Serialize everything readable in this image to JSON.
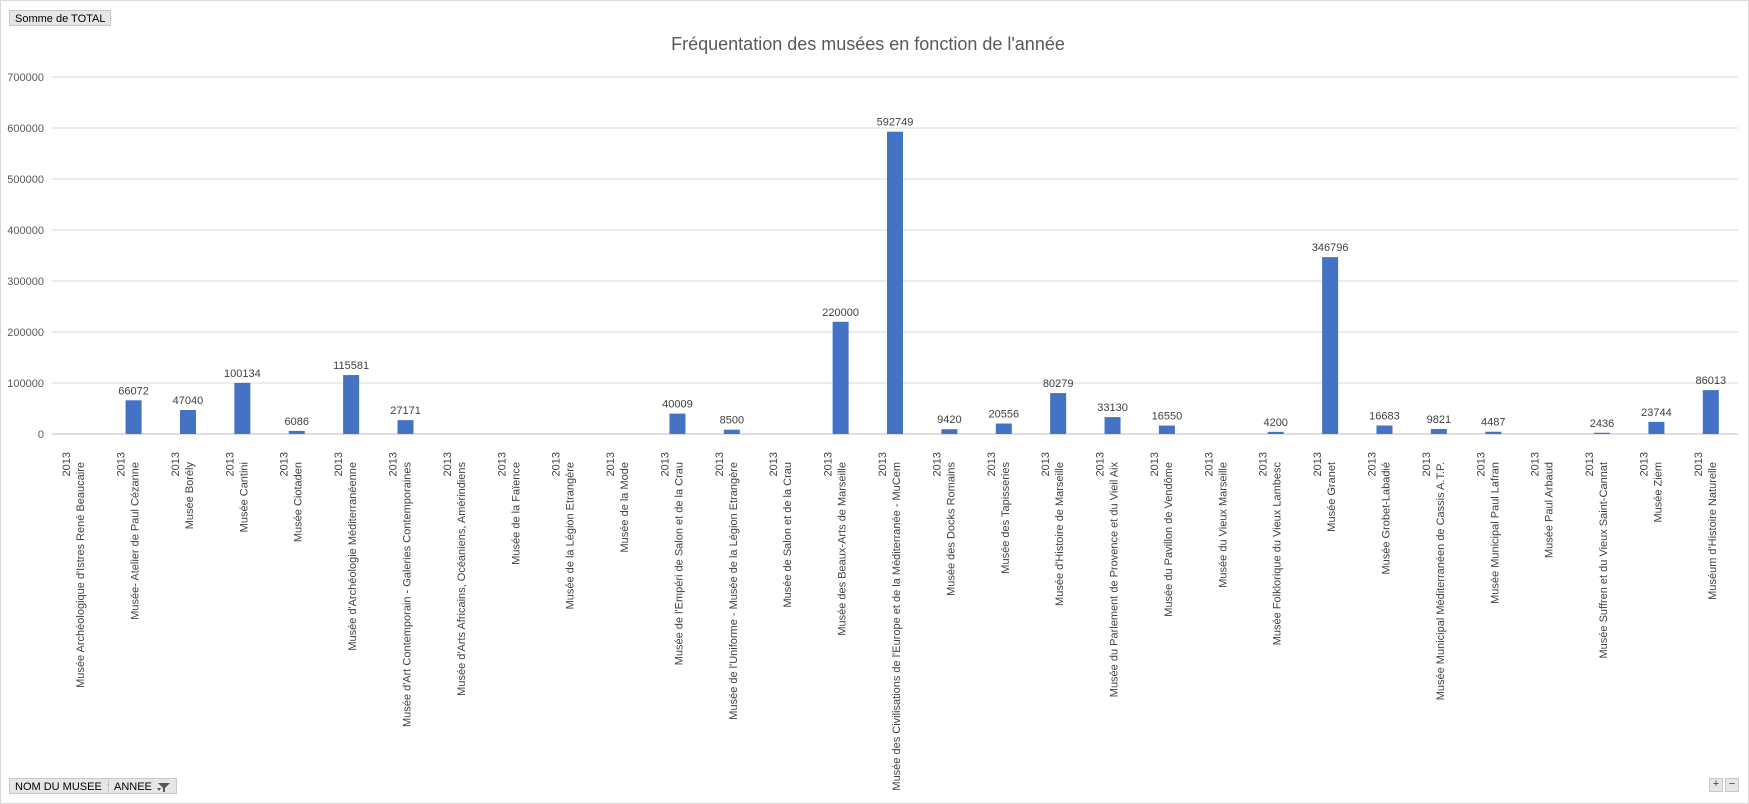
{
  "value_field_button": "Somme  de TOTAL",
  "axis_field_buttons": [
    {
      "label": "NOM DU MUSEE",
      "icon": "dropdown-arrow-icon"
    },
    {
      "label": "ANNEE",
      "icon": "filter-icon"
    }
  ],
  "zoom_controls": {
    "plus": "+",
    "minus": "−"
  },
  "colors": {
    "bar": "#4472c4",
    "grid": "#d9d9d9",
    "axis": "#bfbfbf"
  },
  "chart_data": {
    "type": "bar",
    "title": "Fréquentation des musées en fonction de l'année",
    "xlabel": "",
    "ylabel": "",
    "ylim": [
      0,
      700000
    ],
    "yticks": [
      0,
      100000,
      200000,
      300000,
      400000,
      500000,
      600000,
      700000
    ],
    "ytick_labels": [
      "0",
      "100000",
      "200000",
      "300000",
      "400000",
      "500000",
      "600000",
      "700000"
    ],
    "grid": true,
    "legend": "none",
    "categories": [
      {
        "year": "2013",
        "name": "Musée Archéologique d'Istres René Beaucaire"
      },
      {
        "year": "2013",
        "name": "Musée- Atelier de Paul Cézanne"
      },
      {
        "year": "2013",
        "name": "Musée Borély"
      },
      {
        "year": "2013",
        "name": "Musée Cantini"
      },
      {
        "year": "2013",
        "name": "Musée Ciotaden"
      },
      {
        "year": "2013",
        "name": "Musée d'Archéologie Méditerranéenne"
      },
      {
        "year": "2013",
        "name": "Musée d'Art Contemporain - Galeries Contemporaines"
      },
      {
        "year": "2013",
        "name": "Musée d'Arts Africains, Océaniens, Amérindiens"
      },
      {
        "year": "2013",
        "name": "Musée de la Faïence"
      },
      {
        "year": "2013",
        "name": "Musée de la Légion Etrangère"
      },
      {
        "year": "2013",
        "name": "Musée de la Mode"
      },
      {
        "year": "2013",
        "name": "Musée de l'Empéri de Salon et de la Crau"
      },
      {
        "year": "2013",
        "name": "Musée de l'Uniforme - Musée de la Légion Etrangère"
      },
      {
        "year": "2013",
        "name": "Musée de Salon et de la Crau"
      },
      {
        "year": "2013",
        "name": "Musée des Beaux-Arts de Marseille"
      },
      {
        "year": "2013",
        "name": "Musée des Civilisations de l'Europe et de la Méditerranée - MuCem"
      },
      {
        "year": "2013",
        "name": "Musée des Docks Romains"
      },
      {
        "year": "2013",
        "name": "Musée des Tapisseries"
      },
      {
        "year": "2013",
        "name": "Musée d'Histoire de Marseille"
      },
      {
        "year": "2013",
        "name": "Musée du Parlement de Provence et du Vieil Aix"
      },
      {
        "year": "2013",
        "name": "Musée du Pavillon de Vendôme"
      },
      {
        "year": "2013",
        "name": "Musée du Vieux Marseille"
      },
      {
        "year": "2013",
        "name": "Musée Folklorique du Vieux Lambesc"
      },
      {
        "year": "2013",
        "name": "Musée Granet"
      },
      {
        "year": "2013",
        "name": "Musée Grobet-Labadié"
      },
      {
        "year": "2013",
        "name": "Musée Municipal Méditerranéen de Cassis A.T.P."
      },
      {
        "year": "2013",
        "name": "Musée Municipal Paul Lafran"
      },
      {
        "year": "2013",
        "name": "Musée Paul Arbaud"
      },
      {
        "year": "2013",
        "name": "Musée Suffren et du Vieux Saint-Cannat"
      },
      {
        "year": "2013",
        "name": "Musée Ziem"
      },
      {
        "year": "2013",
        "name": "Muséum d'Histoire Naturelle"
      }
    ],
    "values": [
      null,
      66072,
      47040,
      100134,
      6086,
      115581,
      27171,
      null,
      null,
      null,
      null,
      40009,
      8500,
      null,
      220000,
      592749,
      9420,
      20556,
      80279,
      33130,
      16550,
      null,
      4200,
      346796,
      16683,
      9821,
      4487,
      null,
      2436,
      23744,
      86013
    ],
    "data_labels": [
      "",
      "66072",
      "47040",
      "100134",
      "6086",
      "115581",
      "27171",
      "",
      "",
      "",
      "",
      "40009",
      "8500",
      "",
      "220000",
      "592749",
      "9420",
      "20556",
      "80279",
      "33130",
      "16550",
      "",
      "4200",
      "346796",
      "16683",
      "9821",
      "4487",
      "",
      "2436",
      "23744",
      "86013"
    ]
  }
}
